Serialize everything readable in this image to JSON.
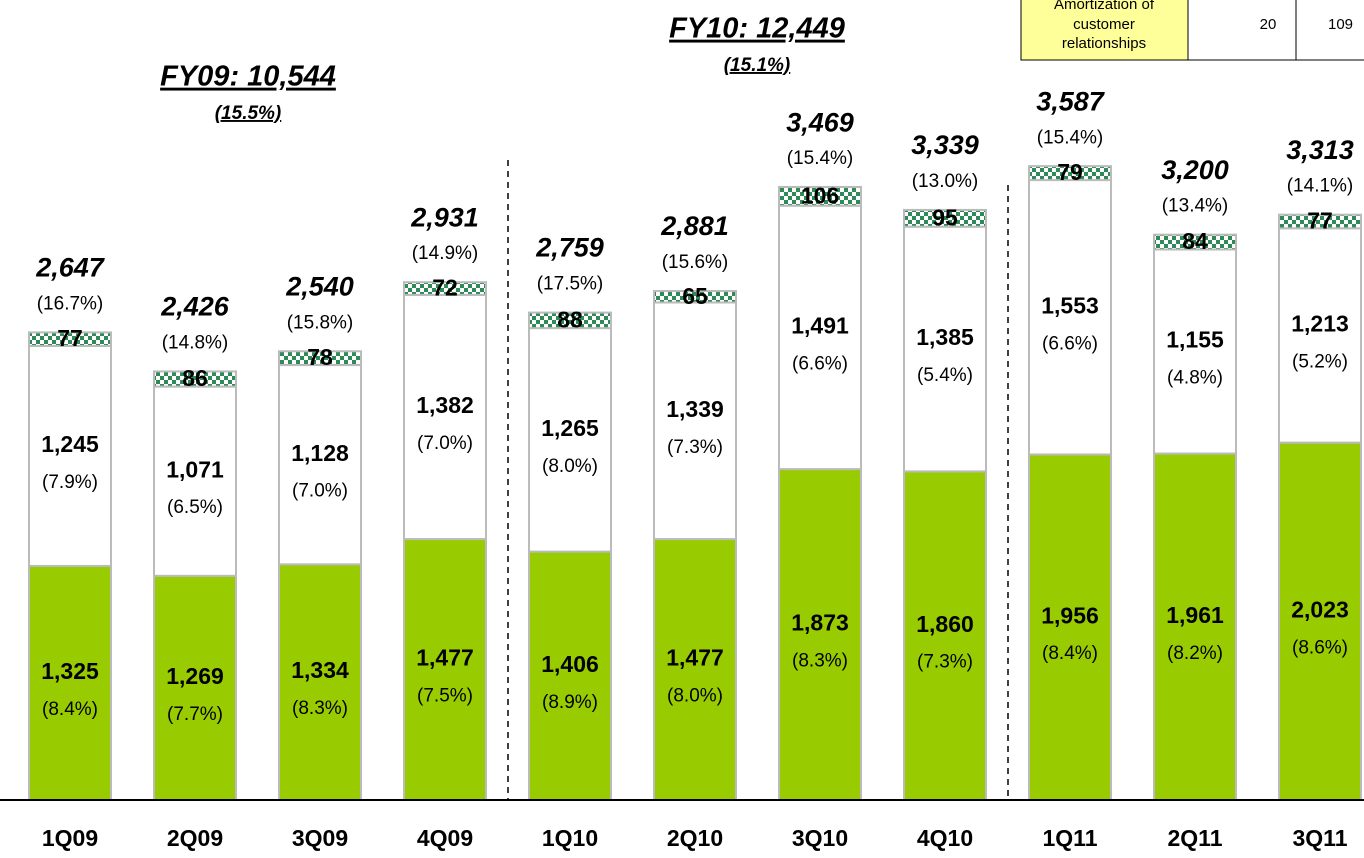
{
  "chart_data": {
    "type": "stacked_bar",
    "categories": [
      "1Q09",
      "2Q09",
      "3Q09",
      "4Q09",
      "1Q10",
      "2Q10",
      "3Q10",
      "4Q10",
      "1Q11",
      "2Q11",
      "3Q11"
    ],
    "series": [
      {
        "color": "#99cc00",
        "values": [
          1325,
          1269,
          1334,
          1477,
          1406,
          1477,
          1873,
          1860,
          1956,
          1961,
          2023
        ],
        "value_labels": [
          "1,325",
          "1,269",
          "1,334",
          "1,477",
          "1,406",
          "1,477",
          "1,873",
          "1,860",
          "1,956",
          "1,961",
          "2,023"
        ],
        "percent_labels": [
          "(8.4%)",
          "(7.7%)",
          "(8.3%)",
          "(7.5%)",
          "(8.9%)",
          "(8.0%)",
          "(8.3%)",
          "(7.3%)",
          "(8.4%)",
          "(8.2%)",
          "(8.6%)"
        ]
      },
      {
        "color": "#ffffff",
        "values": [
          1245,
          1071,
          1128,
          1382,
          1265,
          1339,
          1491,
          1385,
          1553,
          1155,
          1213
        ],
        "value_labels": [
          "1,245",
          "1,071",
          "1,128",
          "1,382",
          "1,265",
          "1,339",
          "1,491",
          "1,385",
          "1,553",
          "1,155",
          "1,213"
        ],
        "percent_labels": [
          "(7.9%)",
          "(6.5%)",
          "(7.0%)",
          "(7.0%)",
          "(8.0%)",
          "(7.3%)",
          "(6.6%)",
          "(5.4%)",
          "(6.6%)",
          "(4.8%)",
          "(5.2%)"
        ]
      },
      {
        "color": "#2e8b57",
        "values": [
          77,
          86,
          78,
          72,
          88,
          65,
          106,
          95,
          79,
          84,
          77
        ]
      }
    ],
    "totals": [
      2647,
      2426,
      2540,
      2931,
      2759,
      2881,
      3469,
      3339,
      3587,
      3200,
      3313
    ],
    "total_labels": [
      "2,647",
      "2,426",
      "2,540",
      "2,931",
      "2,759",
      "2,881",
      "3,469",
      "3,339",
      "3,587",
      "3,200",
      "3,313"
    ],
    "total_percent_labels": [
      "(16.7%)",
      "(14.8%)",
      "(15.8%)",
      "(14.9%)",
      "(17.5%)",
      "(15.6%)",
      "(15.4%)",
      "(13.0%)",
      "(15.4%)",
      "(13.4%)",
      "(14.1%)"
    ],
    "ylim": [
      0,
      4500
    ],
    "annotations": [
      {
        "text": "FY09: 10,544",
        "sub": "(15.5%)"
      },
      {
        "text": "FY10: 12,449",
        "sub": "(15.1%)"
      }
    ],
    "table": {
      "label_lines": [
        "Amortization of",
        "customer",
        "relationships"
      ],
      "cells": [
        "20",
        "109"
      ]
    }
  }
}
